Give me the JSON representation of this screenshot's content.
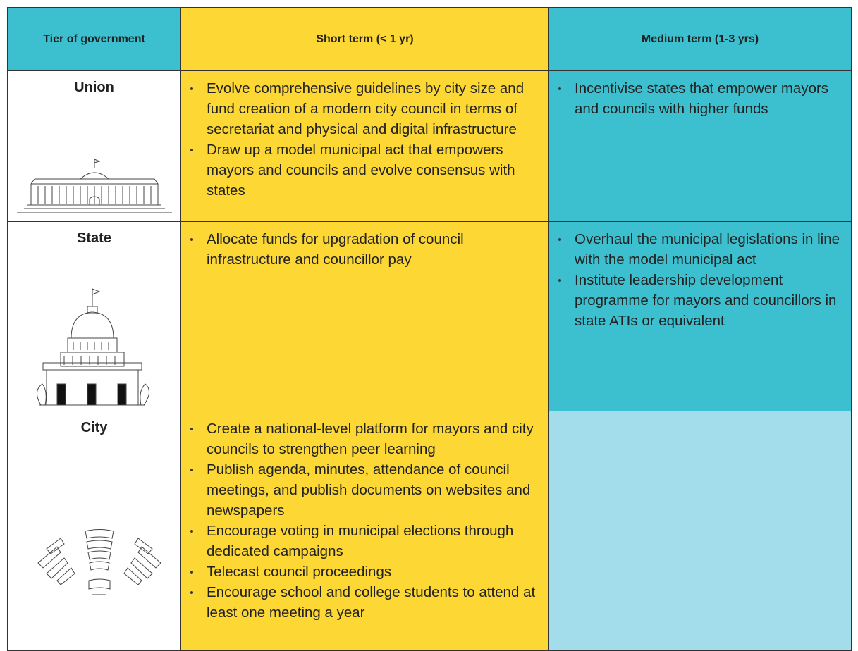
{
  "table": {
    "header": [
      "Tier of government",
      "Short term (< 1 yr)",
      "Medium term (1-3 yrs)"
    ],
    "rows": [
      {
        "tier": "Union",
        "short": [
          "Evolve comprehensive guidelines by city size and fund creation of a modern city council in terms of secretariat and physical and digital infrastructure",
          "Draw up a model municipal act that empowers mayors and councils and evolve consensus with states"
        ],
        "medium": [
          "Incentivise states that empower mayors and councils with higher funds"
        ]
      },
      {
        "tier": "State",
        "short": [
          "Allocate funds for upgradation of council infrastructure and councillor pay"
        ],
        "medium": [
          "Overhaul the municipal legislations in line with the model municipal act",
          "Institute leadership development programme for mayors and councillors in state ATIs or equivalent"
        ]
      },
      {
        "tier": "City",
        "short": [
          "Create a national-level platform for mayors and city councils to strengthen peer learning",
          "Publish agenda, minutes, attendance of council meetings, and publish documents on websites and newspapers",
          "Encourage voting in municipal elections through dedicated campaigns",
          "Telecast council proceedings",
          "Encourage school and college students to attend at least one meeting a year"
        ],
        "medium": []
      }
    ]
  }
}
